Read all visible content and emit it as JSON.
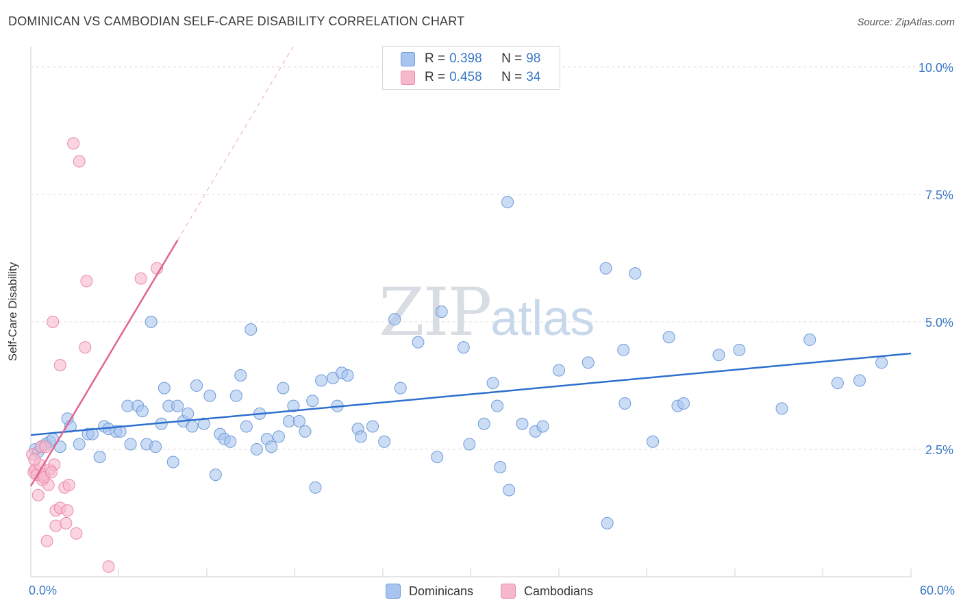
{
  "title": "DOMINICAN VS CAMBODIAN SELF-CARE DISABILITY CORRELATION CHART",
  "source": "Source: ZipAtlas.com",
  "watermark": {
    "zip": "ZIP",
    "atlas": "atlas"
  },
  "legend_top": {
    "row1": {
      "r_label": "R = ",
      "r_value": "0.398",
      "n_label": "N = ",
      "n_value": "98"
    },
    "row2": {
      "r_label": "R = ",
      "r_value": "0.458",
      "n_label": "N = ",
      "n_value": "34"
    }
  },
  "legend_bottom": {
    "dominicans": "Dominicans",
    "cambodians": "Cambodians"
  },
  "colors": {
    "dominicans_fill": "#a9c4ee",
    "dominicans_stroke": "#6e9ad8",
    "dominicans_line": "#2e6fce",
    "cambodians_fill": "#f7b8cb",
    "cambodians_stroke": "#e88aa8",
    "cambodians_line": "#e0648f",
    "tick_label": "#3b78c6",
    "grid": "#dcdcdc"
  },
  "chart_data": {
    "type": "scatter",
    "title": "DOMINICAN VS CAMBODIAN SELF-CARE DISABILITY CORRELATION CHART",
    "xlabel": "",
    "ylabel": "Self-Care Disability",
    "xlim": [
      0,
      60
    ],
    "ylim": [
      0,
      10.4
    ],
    "x_tick_labels": {
      "min": "0.0%",
      "max": "60.0%"
    },
    "y_ticks": [
      2.5,
      5.0,
      7.5,
      10.0
    ],
    "y_tick_labels": [
      "2.5%",
      "5.0%",
      "7.5%",
      "10.0%"
    ],
    "grid": true,
    "legend_placement": "top-center",
    "series": [
      {
        "name": "Dominicans",
        "R": 0.398,
        "N": 98,
        "trend": {
          "x0": 0,
          "y0": 2.78,
          "x1": 60,
          "y1": 4.38
        },
        "points": [
          [
            0.3,
            2.5
          ],
          [
            0.5,
            2.45
          ],
          [
            0.7,
            2.55
          ],
          [
            1.0,
            2.6
          ],
          [
            1.3,
            2.65
          ],
          [
            1.5,
            2.7
          ],
          [
            2.0,
            2.55
          ],
          [
            2.5,
            3.1
          ],
          [
            2.7,
            2.95
          ],
          [
            3.3,
            2.6
          ],
          [
            3.9,
            2.8
          ],
          [
            4.2,
            2.8
          ],
          [
            4.7,
            2.35
          ],
          [
            5.0,
            2.95
          ],
          [
            5.3,
            2.9
          ],
          [
            5.8,
            2.85
          ],
          [
            6.1,
            2.85
          ],
          [
            6.6,
            3.35
          ],
          [
            6.8,
            2.6
          ],
          [
            7.3,
            3.35
          ],
          [
            7.6,
            3.25
          ],
          [
            7.9,
            2.6
          ],
          [
            8.2,
            5.0
          ],
          [
            8.5,
            2.55
          ],
          [
            8.9,
            3.0
          ],
          [
            9.1,
            3.7
          ],
          [
            9.4,
            3.35
          ],
          [
            9.7,
            2.25
          ],
          [
            10.0,
            3.35
          ],
          [
            10.4,
            3.05
          ],
          [
            10.7,
            3.2
          ],
          [
            11.0,
            2.95
          ],
          [
            11.3,
            3.75
          ],
          [
            11.8,
            3.0
          ],
          [
            12.2,
            3.55
          ],
          [
            12.6,
            2.0
          ],
          [
            12.9,
            2.8
          ],
          [
            13.2,
            2.7
          ],
          [
            13.6,
            2.65
          ],
          [
            14.0,
            3.55
          ],
          [
            14.3,
            3.95
          ],
          [
            14.7,
            2.95
          ],
          [
            15.0,
            4.85
          ],
          [
            15.4,
            2.5
          ],
          [
            15.6,
            3.2
          ],
          [
            16.1,
            2.7
          ],
          [
            16.4,
            2.55
          ],
          [
            16.9,
            2.75
          ],
          [
            17.2,
            3.7
          ],
          [
            17.6,
            3.05
          ],
          [
            17.9,
            3.35
          ],
          [
            18.3,
            3.05
          ],
          [
            18.7,
            2.85
          ],
          [
            19.2,
            3.45
          ],
          [
            19.4,
            1.75
          ],
          [
            19.8,
            3.85
          ],
          [
            20.6,
            3.9
          ],
          [
            20.9,
            3.35
          ],
          [
            21.2,
            4.0
          ],
          [
            21.6,
            3.95
          ],
          [
            22.3,
            2.9
          ],
          [
            22.5,
            2.75
          ],
          [
            23.3,
            2.95
          ],
          [
            24.1,
            2.65
          ],
          [
            24.8,
            5.05
          ],
          [
            25.2,
            3.7
          ],
          [
            26.4,
            4.6
          ],
          [
            27.7,
            2.35
          ],
          [
            28.0,
            5.2
          ],
          [
            29.5,
            4.5
          ],
          [
            29.9,
            2.6
          ],
          [
            30.9,
            3.0
          ],
          [
            31.5,
            3.8
          ],
          [
            31.8,
            3.35
          ],
          [
            32.0,
            2.15
          ],
          [
            32.5,
            7.35
          ],
          [
            32.6,
            1.7
          ],
          [
            33.5,
            3.0
          ],
          [
            34.4,
            2.85
          ],
          [
            34.9,
            2.95
          ],
          [
            36.0,
            4.05
          ],
          [
            38.0,
            4.2
          ],
          [
            39.2,
            6.05
          ],
          [
            39.3,
            1.05
          ],
          [
            40.4,
            4.45
          ],
          [
            40.5,
            3.4
          ],
          [
            41.2,
            5.95
          ],
          [
            42.4,
            2.65
          ],
          [
            43.5,
            4.7
          ],
          [
            44.1,
            3.35
          ],
          [
            44.5,
            3.4
          ],
          [
            46.9,
            4.35
          ],
          [
            48.3,
            4.45
          ],
          [
            51.2,
            3.3
          ],
          [
            53.1,
            4.65
          ],
          [
            55.0,
            3.8
          ],
          [
            56.5,
            3.85
          ],
          [
            58.0,
            4.2
          ]
        ]
      },
      {
        "name": "Cambodians",
        "R": 0.458,
        "N": 34,
        "trend": {
          "x0": 0,
          "y0": 1.78,
          "x1": 10,
          "y1": 6.6
        },
        "points": [
          [
            0.1,
            2.4
          ],
          [
            0.2,
            2.05
          ],
          [
            0.3,
            2.1
          ],
          [
            0.4,
            2.0
          ],
          [
            0.5,
            1.6
          ],
          [
            0.6,
            2.2
          ],
          [
            0.7,
            2.55
          ],
          [
            0.8,
            1.9
          ],
          [
            0.9,
            2.0
          ],
          [
            1.0,
            2.55
          ],
          [
            1.1,
            0.7
          ],
          [
            1.2,
            1.8
          ],
          [
            1.3,
            2.1
          ],
          [
            1.5,
            5.0
          ],
          [
            1.6,
            2.2
          ],
          [
            1.7,
            1.0
          ],
          [
            1.7,
            1.3
          ],
          [
            2.0,
            1.35
          ],
          [
            2.0,
            4.15
          ],
          [
            2.3,
            1.75
          ],
          [
            2.4,
            1.05
          ],
          [
            2.5,
            1.3
          ],
          [
            2.6,
            1.8
          ],
          [
            2.9,
            8.5
          ],
          [
            3.1,
            0.85
          ],
          [
            3.3,
            8.15
          ],
          [
            3.7,
            4.5
          ],
          [
            3.8,
            5.8
          ],
          [
            5.3,
            0.2
          ],
          [
            7.5,
            5.85
          ],
          [
            8.6,
            6.05
          ],
          [
            0.9,
            1.95
          ],
          [
            1.4,
            2.05
          ],
          [
            0.25,
            2.3
          ]
        ]
      }
    ]
  }
}
